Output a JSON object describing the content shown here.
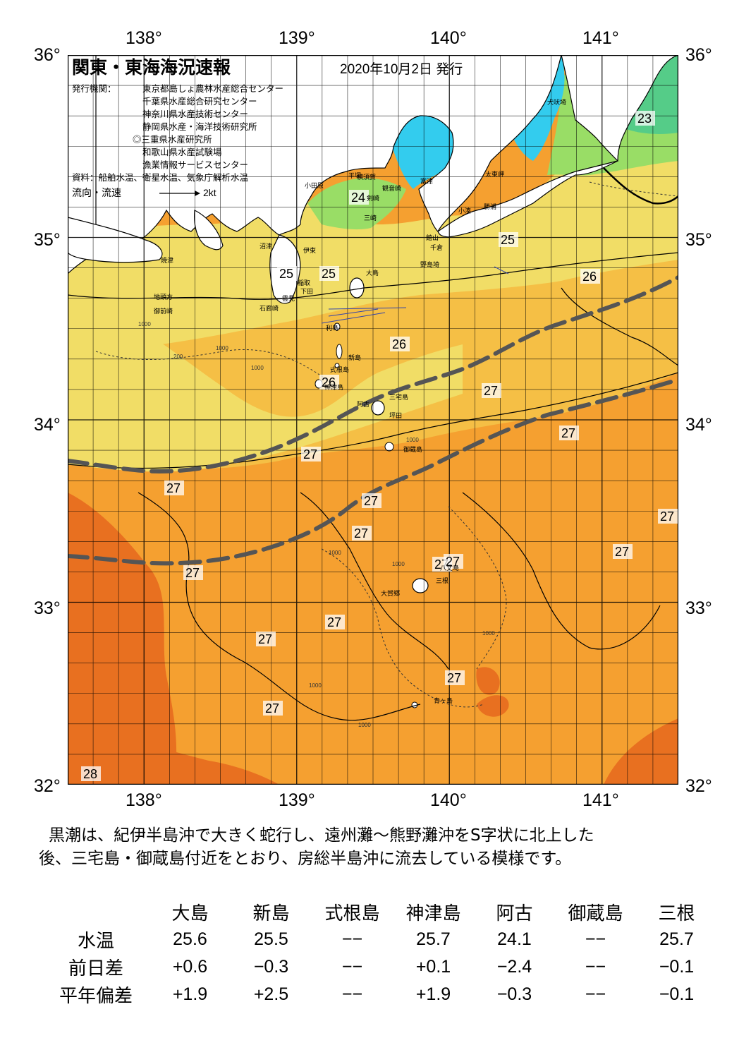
{
  "title": "関東・東海海況速報",
  "issue_date": "2020年10月2日 発行",
  "issuers_label": "発行機関：",
  "issuers": [
    "東京都島しょ農林水産総合センター",
    "千葉県水産総合研究センター",
    "神奈川県水産技術センター",
    "静岡県水産・海洋技術研究所",
    "◎三重県水産研究所",
    "和歌山県水産試験場",
    "漁業情報サービスセンター"
  ],
  "sources": "資料：船舶水温、衛星水温、気象庁解析水温",
  "legend": {
    "label": "流向・流速",
    "scale": "2kt"
  },
  "axes": {
    "lon_labels": [
      "138°",
      "139°",
      "140°",
      "141°"
    ],
    "lat_labels": [
      "36°",
      "35°",
      "34°",
      "33°",
      "32°"
    ]
  },
  "temperature_labels": [
    "23",
    "24",
    "25",
    "25",
    "25",
    "26",
    "26",
    "26",
    "27",
    "27",
    "27",
    "27",
    "27",
    "27",
    "27",
    "27",
    "27",
    "27",
    "27",
    "27",
    "27",
    "27",
    "27",
    "28"
  ],
  "place_names": [
    "犬吠埼",
    "太東岬",
    "勝浦",
    "小湊",
    "館山",
    "千倉",
    "野島埼",
    "横須賀",
    "観音崎",
    "富津",
    "剣崎",
    "三崎",
    "平塚",
    "小田原",
    "伊東",
    "稲取",
    "下田",
    "石廊崎",
    "雲見",
    "沼津",
    "焼津",
    "御前崎",
    "地頭方",
    "大島",
    "利島",
    "新島",
    "式根島",
    "神津島",
    "三宅島",
    "阿古",
    "坪田",
    "御蔵島",
    "八丈島",
    "三根",
    "大賀郷",
    "青ヶ島"
  ],
  "depth_contours": [
    "200",
    "1000"
  ],
  "description_lines": [
    "黒潮は、紀伊半島沖で大きく蛇行し、遠州灘～熊野灘沖をS字状に北上した",
    "後、三宅島・御蔵島付近をとおり、房総半島沖に流去している模様です。"
  ],
  "table": {
    "columns": [
      "大島",
      "新島",
      "式根島",
      "神津島",
      "阿古",
      "御蔵島",
      "三根"
    ],
    "rows": [
      {
        "label": "水温",
        "values": [
          "25.6",
          "25.5",
          "−−",
          "25.7",
          "24.1",
          "−−",
          "25.7"
        ]
      },
      {
        "label": "前日差",
        "values": [
          "+0.6",
          "−0.3",
          "−−",
          "+0.1",
          "−2.4",
          "−−",
          "−0.1"
        ]
      },
      {
        "label": "平年偏差",
        "values": [
          "+1.9",
          "+2.5",
          "−−",
          "+1.9",
          "−0.3",
          "−−",
          "−0.1"
        ]
      }
    ]
  },
  "colors": {
    "land": "#ffffff",
    "temp_23": "#33cc88",
    "temp_24": "#99ee77",
    "temp_25": "#eeee77",
    "temp_26": "#f5c24a",
    "temp_27": "#f5a030",
    "temp_28": "#e86a10",
    "bay": "#33ccee",
    "kuroshio_axis": "#555555"
  }
}
